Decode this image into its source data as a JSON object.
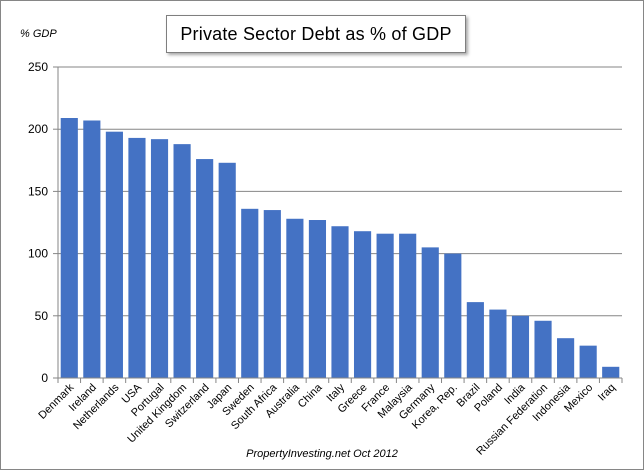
{
  "chart_data": {
    "type": "bar",
    "title": "Private Sector Debt as % of GDP",
    "ylabel": "% GDP",
    "xlabel": "",
    "source": "PropertyInvesting.net Oct 2012",
    "ylim": [
      0,
      250
    ],
    "yticks": [
      0,
      50,
      100,
      150,
      200,
      250
    ],
    "grid": "horizontal",
    "bar_color": "#4472C4",
    "categories": [
      "Denmark",
      "Ireland",
      "Netherlands",
      "USA",
      "Portugal",
      "United Kingdom",
      "Switzerland",
      "Japan",
      "Sweden",
      "South Africa",
      "Australia",
      "China",
      "Italy",
      "Greece",
      "France",
      "Malaysia",
      "Germany",
      "Korea, Rep.",
      "Brazil",
      "Poland",
      "India",
      "Russian Federation",
      "Indonesia",
      "Mexico",
      "Iraq"
    ],
    "values": [
      209,
      207,
      198,
      193,
      192,
      188,
      176,
      173,
      136,
      135,
      128,
      127,
      122,
      118,
      116,
      116,
      105,
      100,
      61,
      55,
      50,
      46,
      32,
      26,
      9
    ]
  }
}
